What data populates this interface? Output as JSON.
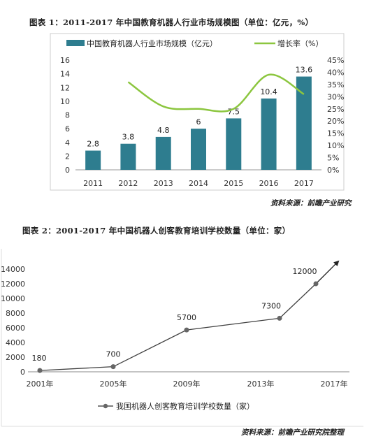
{
  "charts": {
    "chart1": {
      "title": "图表 1：2011-2017 年中国教育机器人行业市场规模图（单位：亿元，%）",
      "source": "资料来源：前瞻产业研究",
      "legend_bar": "中国教育机器人行业市场规模（亿元）",
      "legend_line": "增长率（%）",
      "colors": {
        "bar": "#2e7d8f",
        "line": "#8cc63f"
      }
    },
    "chart2": {
      "title": "图表 2：2001-2017 年中国机器人创客教育培训学校数量（单位：家）",
      "source": "资料来源：前瞻产业研究院整理",
      "legend": "我国机器人创客教育培训学校数量（家）",
      "colors": {
        "line": "#404040"
      }
    }
  },
  "chart_data": [
    {
      "type": "bar",
      "categories": [
        "2011",
        "2012",
        "2013",
        "2014",
        "2015",
        "2016",
        "2017"
      ],
      "series": [
        {
          "name": "中国教育机器人行业市场规模（亿元）",
          "type": "bar",
          "values": [
            2.8,
            3.8,
            4.8,
            6,
            7.5,
            10.4,
            13.6
          ],
          "value_labels": [
            "2.8",
            "3.8",
            "4.8",
            "6",
            "7.5",
            "10.4",
            "13.6"
          ]
        },
        {
          "name": "增长率（%）",
          "type": "line",
          "axis": "right",
          "values": [
            null,
            36,
            26,
            25,
            25,
            39,
            31
          ]
        }
      ],
      "left_ticks": [
        "0",
        "2",
        "4",
        "6",
        "8",
        "10",
        "12",
        "14",
        "16"
      ],
      "right_ticks": [
        "0%",
        "5%",
        "10%",
        "15%",
        "20%",
        "25%",
        "30%",
        "35%",
        "40%",
        "45%"
      ],
      "ylim": [
        0,
        16
      ],
      "y2lim": [
        0,
        45
      ],
      "legend_position": "top"
    },
    {
      "type": "line",
      "x": [
        "2001年",
        "2005年",
        "2009年",
        "2013年",
        "2017年"
      ],
      "series": [
        {
          "name": "我国机器人创客教育培训学校数量（家）",
          "values": [
            180,
            700,
            5700,
            7300,
            12000
          ],
          "value_labels": [
            "180",
            "700",
            "5700",
            "7300",
            "12000"
          ]
        }
      ],
      "y_ticks": [
        "0",
        "2000",
        "4000",
        "6000",
        "8000",
        "10000",
        "12000",
        "14000"
      ],
      "ylim": [
        0,
        14000
      ],
      "legend_position": "bottom"
    }
  ]
}
